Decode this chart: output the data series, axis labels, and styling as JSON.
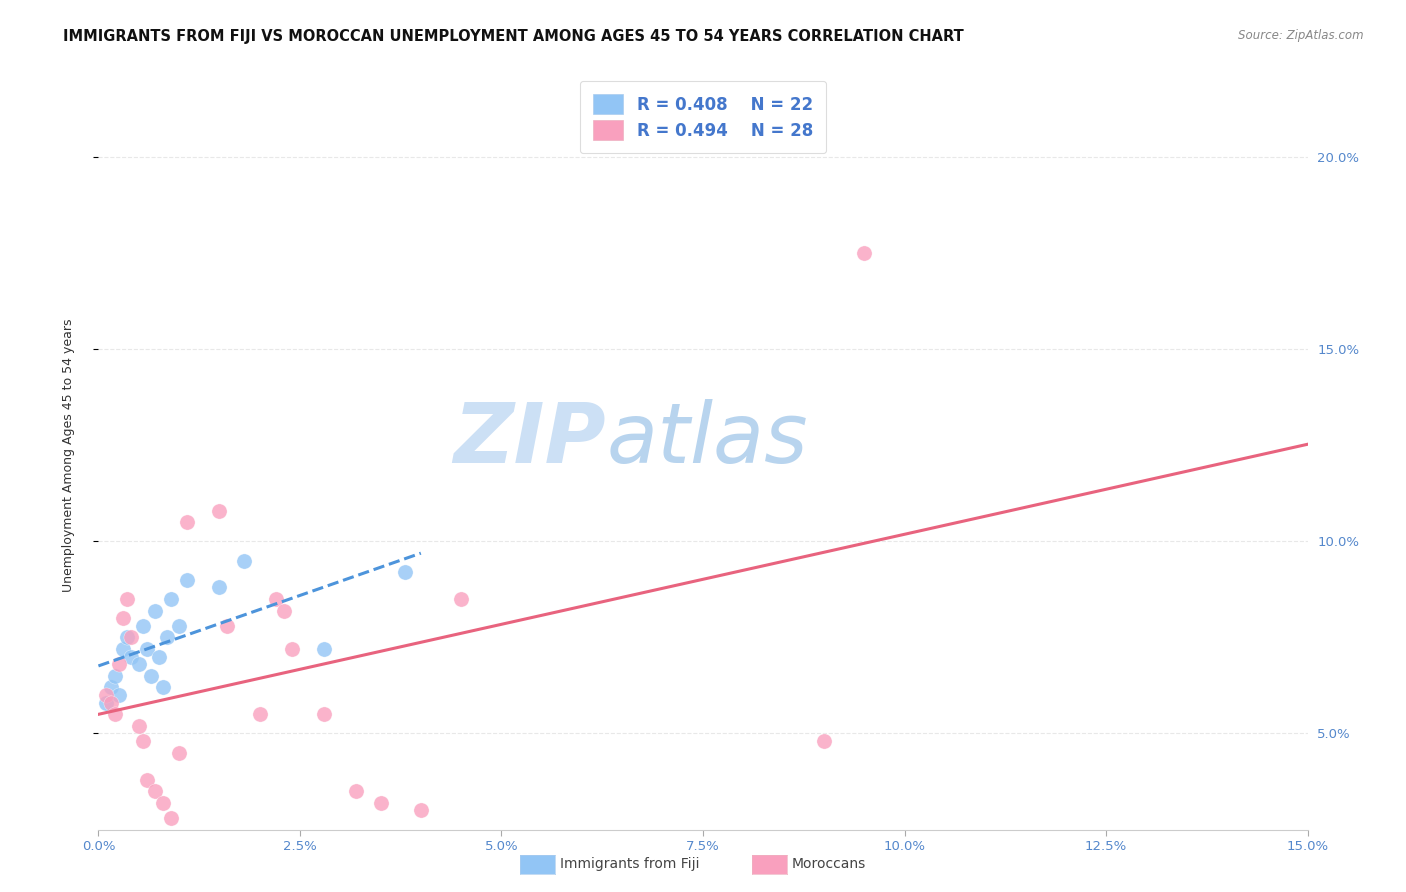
{
  "title": "IMMIGRANTS FROM FIJI VS MOROCCAN UNEMPLOYMENT AMONG AGES 45 TO 54 YEARS CORRELATION CHART",
  "source": "Source: ZipAtlas.com",
  "xlabel_vals": [
    0.0,
    2.5,
    5.0,
    7.5,
    10.0,
    12.5,
    15.0
  ],
  "ylabel_vals": [
    5.0,
    10.0,
    15.0,
    20.0
  ],
  "xlim": [
    0,
    15
  ],
  "ylim": [
    2.5,
    22.0
  ],
  "ylabel": "Unemployment Among Ages 45 to 54 years",
  "watermark_zip": "ZIP",
  "watermark_atlas": "atlas",
  "legend_fiji_r": "R = 0.408",
  "legend_fiji_n": "N = 22",
  "legend_moroccan_r": "R = 0.494",
  "legend_moroccan_n": "N = 28",
  "fiji_color": "#92c5f5",
  "moroccan_color": "#f9a0be",
  "fiji_line_color": "#4d94db",
  "moroccan_line_color": "#e8637e",
  "fiji_scatter_x": [
    0.1,
    0.15,
    0.2,
    0.25,
    0.3,
    0.35,
    0.4,
    0.5,
    0.55,
    0.6,
    0.65,
    0.7,
    0.75,
    0.8,
    0.85,
    0.9,
    1.0,
    1.1,
    1.5,
    1.8,
    2.8,
    3.8
  ],
  "fiji_scatter_y": [
    5.8,
    6.2,
    6.5,
    6.0,
    7.2,
    7.5,
    7.0,
    6.8,
    7.8,
    7.2,
    6.5,
    8.2,
    7.0,
    6.2,
    7.5,
    8.5,
    7.8,
    9.0,
    8.8,
    9.5,
    7.2,
    9.2
  ],
  "moroccan_scatter_x": [
    0.1,
    0.15,
    0.2,
    0.25,
    0.3,
    0.35,
    0.4,
    0.5,
    0.55,
    0.6,
    0.7,
    0.8,
    0.9,
    1.0,
    1.1,
    1.5,
    1.6,
    2.0,
    2.2,
    2.3,
    2.4,
    2.8,
    3.2,
    3.5,
    4.0,
    4.5,
    9.0,
    9.5
  ],
  "moroccan_scatter_y": [
    6.0,
    5.8,
    5.5,
    6.8,
    8.0,
    8.5,
    7.5,
    5.2,
    4.8,
    3.8,
    3.5,
    3.2,
    2.8,
    4.5,
    10.5,
    10.8,
    7.8,
    5.5,
    8.5,
    8.2,
    7.2,
    5.5,
    3.5,
    3.2,
    3.0,
    8.5,
    4.8,
    17.5
  ],
  "grid_color": "#e8e8e8",
  "background_color": "#ffffff",
  "title_fontsize": 10.5,
  "axis_label_fontsize": 9,
  "tick_fontsize": 9.5,
  "right_tick_color": "#5588cc",
  "bottom_tick_color": "#5588cc",
  "watermark_color": "#cce0f5",
  "watermark_fontsize_zip": 60,
  "watermark_fontsize_atlas": 60
}
